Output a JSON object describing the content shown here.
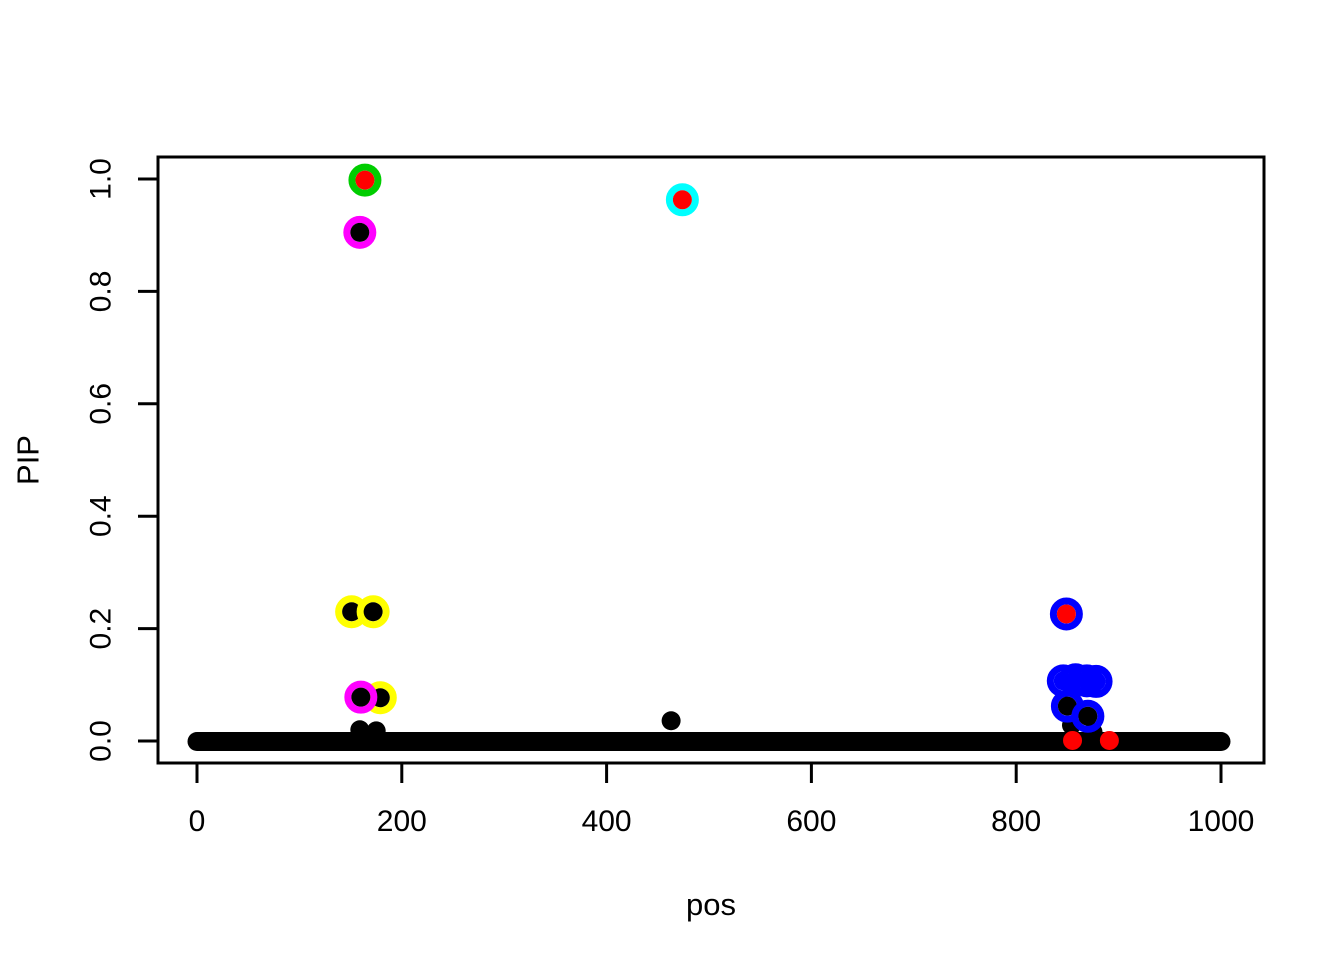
{
  "chart_data": {
    "type": "scatter",
    "title": "",
    "xlabel": "pos",
    "ylabel": "PIP",
    "xlim": [
      0,
      1000
    ],
    "ylim": [
      0.0,
      1.0
    ],
    "x_ticks": [
      0,
      200,
      400,
      600,
      800,
      1000
    ],
    "x_tick_labels": [
      "0",
      "200",
      "400",
      "600",
      "800",
      "1000"
    ],
    "y_ticks": [
      0.0,
      0.2,
      0.4,
      0.6,
      0.8,
      1.0
    ],
    "y_tick_labels": [
      "0.0",
      "0.2",
      "0.4",
      "0.6",
      "0.8",
      "1.0"
    ],
    "grid": false,
    "legend": "none",
    "palette": {
      "black": "#000000",
      "red": "#FF0000",
      "green": "#00CD00",
      "magenta": "#FF00FF",
      "yellow": "#FFFF00",
      "cyan": "#00FFFF",
      "blue": "#0000FF"
    },
    "marker": {
      "dot_radius": 9.5,
      "ring_radius": 13,
      "ring_stroke_width": 7
    },
    "zero_band": {
      "description": "dense run of points at PIP ~ 0 spanning the full pos range, merged into a solid black band",
      "pos_start": 0,
      "pos_end": 1000,
      "pip": 0.0,
      "color": "black",
      "thickness": 19
    },
    "points": [
      {
        "pos": 159,
        "pip": 0.02,
        "fill": "black"
      },
      {
        "pos": 175,
        "pip": 0.018,
        "fill": "black"
      },
      {
        "pos": 463,
        "pip": 0.036,
        "fill": "black"
      },
      {
        "pos": 854,
        "pip": 0.028,
        "fill": "black"
      },
      {
        "pos": 875,
        "pip": 0.016,
        "fill": "black"
      },
      {
        "pos": 855,
        "pip": 0.001,
        "fill": "red"
      },
      {
        "pos": 891,
        "pip": 0.001,
        "fill": "red"
      },
      {
        "pos": 151,
        "pip": 0.23,
        "fill": "black",
        "ring": "yellow"
      },
      {
        "pos": 172,
        "pip": 0.23,
        "fill": "black",
        "ring": "yellow"
      },
      {
        "pos": 179,
        "pip": 0.077,
        "fill": "black",
        "ring": "yellow"
      },
      {
        "pos": 160,
        "pip": 0.078,
        "fill": "black",
        "ring": "magenta"
      },
      {
        "pos": 164,
        "pip": 0.998,
        "fill": "red",
        "ring": "green"
      },
      {
        "pos": 159,
        "pip": 0.905,
        "fill": "black",
        "ring": "magenta"
      },
      {
        "pos": 474,
        "pip": 0.963,
        "fill": "red",
        "ring": "cyan"
      },
      {
        "pos": 846,
        "pip": 0.107,
        "fill": "blue",
        "ring": "blue"
      },
      {
        "pos": 858,
        "pip": 0.109,
        "fill": "blue",
        "ring": "blue"
      },
      {
        "pos": 869,
        "pip": 0.107,
        "fill": "blue",
        "ring": "blue"
      },
      {
        "pos": 878,
        "pip": 0.106,
        "fill": "blue",
        "ring": "blue"
      },
      {
        "pos": 849,
        "pip": 0.226,
        "fill": "red",
        "ring": "blue"
      },
      {
        "pos": 850,
        "pip": 0.062,
        "fill": "black",
        "ring": "blue"
      },
      {
        "pos": 870,
        "pip": 0.044,
        "fill": "black",
        "ring": "blue"
      }
    ]
  }
}
